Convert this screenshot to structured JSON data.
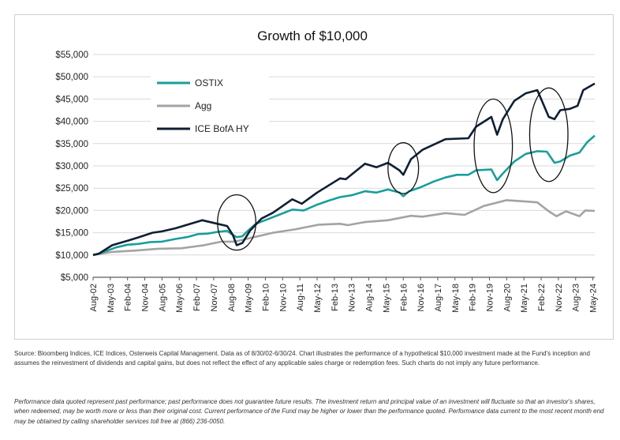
{
  "chart_data": {
    "type": "line",
    "title": "Growth of $10,000",
    "xlabel": "",
    "ylabel": "",
    "ylim": [
      5000,
      55000
    ],
    "y_ticks": [
      "$5,000",
      "$10,000",
      "$15,000",
      "$20,000",
      "$25,000",
      "$30,000",
      "$35,000",
      "$40,000",
      "$45,000",
      "$50,000",
      "$55,000"
    ],
    "x_ticks": [
      "Aug-02",
      "May-03",
      "Feb-04",
      "Nov-04",
      "Aug-05",
      "May-06",
      "Feb-07",
      "Nov-07",
      "Aug-08",
      "May-09",
      "Feb-10",
      "Nov-10",
      "Aug-11",
      "May-12",
      "Feb-13",
      "Nov-13",
      "Aug-14",
      "May-15",
      "Feb-16",
      "Nov-16",
      "Aug-17",
      "May-18",
      "Feb-19",
      "Nov-19",
      "Aug-20",
      "May-21",
      "Feb-22",
      "Nov-22",
      "Aug-23",
      "May-24"
    ],
    "grid": "horizontal",
    "legend_position": "top-left",
    "series": [
      {
        "name": "OSTIX",
        "color": "#1a9e9a",
        "points": [
          [
            "2002-08",
            10000
          ],
          [
            "2002-11",
            10300
          ],
          [
            "2003-03",
            10900
          ],
          [
            "2003-08",
            11700
          ],
          [
            "2004-02",
            12300
          ],
          [
            "2004-08",
            12500
          ],
          [
            "2005-02",
            12900
          ],
          [
            "2005-08",
            13000
          ],
          [
            "2006-03",
            13600
          ],
          [
            "2006-09",
            14000
          ],
          [
            "2007-03",
            14700
          ],
          [
            "2007-08",
            14800
          ],
          [
            "2008-01",
            15200
          ],
          [
            "2008-06",
            15400
          ],
          [
            "2008-09",
            14500
          ],
          [
            "2008-11",
            14000
          ],
          [
            "2009-02",
            14200
          ],
          [
            "2009-05",
            15500
          ],
          [
            "2009-09",
            17000
          ],
          [
            "2010-03",
            18000
          ],
          [
            "2010-09",
            19000
          ],
          [
            "2011-04",
            20200
          ],
          [
            "2011-10",
            20000
          ],
          [
            "2012-05",
            21300
          ],
          [
            "2012-11",
            22200
          ],
          [
            "2013-05",
            23000
          ],
          [
            "2013-11",
            23400
          ],
          [
            "2014-06",
            24300
          ],
          [
            "2014-12",
            24000
          ],
          [
            "2015-06",
            24700
          ],
          [
            "2015-12",
            24000
          ],
          [
            "2016-02",
            23200
          ],
          [
            "2016-05",
            24300
          ],
          [
            "2016-11",
            25200
          ],
          [
            "2017-06",
            26500
          ],
          [
            "2017-12",
            27400
          ],
          [
            "2018-06",
            28000
          ],
          [
            "2018-12",
            28000
          ],
          [
            "2019-04",
            29000
          ],
          [
            "2019-12",
            29200
          ],
          [
            "2020-03",
            26800
          ],
          [
            "2020-06",
            28300
          ],
          [
            "2020-12",
            31000
          ],
          [
            "2021-06",
            32700
          ],
          [
            "2021-12",
            33300
          ],
          [
            "2022-05",
            33200
          ],
          [
            "2022-09",
            30700
          ],
          [
            "2022-12",
            31000
          ],
          [
            "2023-05",
            32300
          ],
          [
            "2023-10",
            33000
          ],
          [
            "2024-02",
            35300
          ],
          [
            "2024-06",
            36800
          ]
        ]
      },
      {
        "name": "Agg",
        "color": "#a3a3a3",
        "points": [
          [
            "2002-08",
            10000
          ],
          [
            "2003-06",
            10700
          ],
          [
            "2004-06",
            11000
          ],
          [
            "2005-06",
            11400
          ],
          [
            "2006-06",
            11500
          ],
          [
            "2007-06",
            12200
          ],
          [
            "2008-03",
            13000
          ],
          [
            "2008-10",
            13000
          ],
          [
            "2009-06",
            13800
          ],
          [
            "2010-06",
            15000
          ],
          [
            "2011-06",
            15800
          ],
          [
            "2012-06",
            16800
          ],
          [
            "2013-05",
            17000
          ],
          [
            "2013-09",
            16700
          ],
          [
            "2014-06",
            17400
          ],
          [
            "2015-06",
            17800
          ],
          [
            "2016-06",
            18800
          ],
          [
            "2016-12",
            18600
          ],
          [
            "2017-12",
            19400
          ],
          [
            "2018-10",
            19000
          ],
          [
            "2019-08",
            21000
          ],
          [
            "2020-08",
            22300
          ],
          [
            "2021-06",
            22000
          ],
          [
            "2021-12",
            21800
          ],
          [
            "2022-06",
            19800
          ],
          [
            "2022-10",
            18700
          ],
          [
            "2023-03",
            19800
          ],
          [
            "2023-10",
            18700
          ],
          [
            "2024-01",
            20000
          ],
          [
            "2024-06",
            19900
          ]
        ]
      },
      {
        "name": "ICE BofA HY",
        "color": "#0f1f33",
        "points": [
          [
            "2002-08",
            10000
          ],
          [
            "2002-11",
            10300
          ],
          [
            "2003-06",
            12200
          ],
          [
            "2004-02",
            13200
          ],
          [
            "2004-08",
            14000
          ],
          [
            "2005-03",
            15000
          ],
          [
            "2005-08",
            15300
          ],
          [
            "2006-03",
            16000
          ],
          [
            "2007-05",
            17800
          ],
          [
            "2007-11",
            17200
          ],
          [
            "2008-06",
            16500
          ],
          [
            "2008-09",
            14500
          ],
          [
            "2008-11",
            12200
          ],
          [
            "2009-02",
            12700
          ],
          [
            "2009-06",
            15500
          ],
          [
            "2009-12",
            18200
          ],
          [
            "2010-06",
            19500
          ],
          [
            "2011-04",
            22500
          ],
          [
            "2011-09",
            21500
          ],
          [
            "2012-05",
            24000
          ],
          [
            "2013-05",
            27200
          ],
          [
            "2013-08",
            27000
          ],
          [
            "2014-06",
            30500
          ],
          [
            "2014-12",
            29700
          ],
          [
            "2015-06",
            30700
          ],
          [
            "2015-12",
            29000
          ],
          [
            "2016-02",
            28000
          ],
          [
            "2016-06",
            31500
          ],
          [
            "2016-12",
            33600
          ],
          [
            "2017-12",
            36000
          ],
          [
            "2018-12",
            36200
          ],
          [
            "2019-04",
            38800
          ],
          [
            "2019-12",
            41000
          ],
          [
            "2020-03",
            37000
          ],
          [
            "2020-06",
            40500
          ],
          [
            "2020-12",
            44600
          ],
          [
            "2021-06",
            46300
          ],
          [
            "2021-12",
            47000
          ],
          [
            "2022-06",
            41000
          ],
          [
            "2022-09",
            40500
          ],
          [
            "2022-12",
            42500
          ],
          [
            "2023-05",
            42800
          ],
          [
            "2023-09",
            43500
          ],
          [
            "2023-12",
            47000
          ],
          [
            "2024-06",
            48500
          ]
        ]
      }
    ],
    "annotations": [
      {
        "type": "ellipse",
        "x": "2008-11",
        "y": 17300,
        "rx_months": 10,
        "ry_value": 6200
      },
      {
        "type": "ellipse",
        "x": "2016-02",
        "y": 29500,
        "rx_months": 8,
        "ry_value": 5700
      },
      {
        "type": "ellipse",
        "x": "2020-01",
        "y": 34500,
        "rx_months": 10,
        "ry_value": 10500
      },
      {
        "type": "ellipse",
        "x": "2022-06",
        "y": 37000,
        "rx_months": 10,
        "ry_value": 10500
      }
    ]
  },
  "notes": {
    "source": "Source: Bloomberg Indices, ICE Indices, Osterweis Capital Management. Data as of 8/30/02-6/30/24. Chart illustrates the performance of a hypothetical $10,000 investment made at the Fund's inception and assumes the reinvestment of dividends and capital gains, but does not reflect the effect of any applicable sales charge or redemption fees. Such charts do not imply any future performance.",
    "disclaimer": "Performance data quoted represent past performance; past performance does not guarantee future results. The investment return and principal value of an investment will fluctuate so that an investor's shares, when redeemed, may be worth more or less than their original cost. Current performance of the Fund may be higher or lower than the performance quoted. Performance data current to the most recent month end may be obtained by calling shareholder services toll free at (866) 236-0050."
  }
}
